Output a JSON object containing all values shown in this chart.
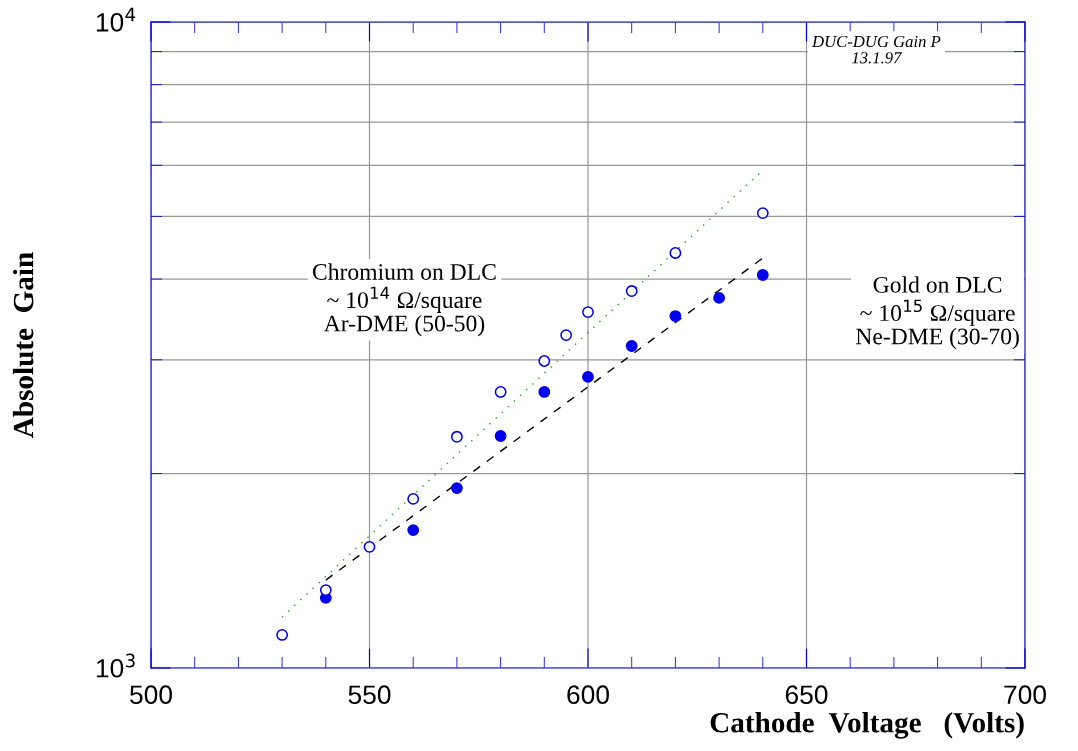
{
  "chart_data": {
    "type": "scatter",
    "xlabel": "Cathode  Voltage   (Volts)",
    "ylabel": "Absolute  Gain",
    "log": "y",
    "grid": true,
    "legend": false,
    "marker": "circle",
    "xlim": [
      500,
      700
    ],
    "xticks": [
      500,
      550,
      600,
      650,
      700
    ],
    "ylim": [
      1000,
      10000
    ],
    "yticks": [
      {
        "value": 1000,
        "label": "10$^{3}$"
      },
      {
        "value": 10000,
        "label": "10$^{4}$"
      }
    ],
    "series": [
      {
        "color": "#0000ee",
        "x": [
          530,
          540,
          550,
          560,
          570,
          580,
          590,
          595,
          600,
          610,
          620,
          640
        ],
        "values": [
          1125,
          1320,
          1540,
          1827,
          2280,
          2675,
          2987,
          3276,
          3556,
          3833,
          4390,
          5060
        ]
      },
      {
        "color": "#0000ee",
        "x": [
          540,
          560,
          570,
          580,
          590,
          600,
          610,
          620,
          630,
          640
        ],
        "values": [
          1284,
          1635,
          1899,
          2286,
          2675,
          2822,
          3151,
          3506,
          3740,
          4059
        ]
      },
      {
        "type": "line",
        "color": "#22a022",
        "line_style": "dotted",
        "marker": "none",
        "x": [
          530,
          640
        ],
        "values": [
          1199,
          5900
        ]
      },
      {
        "type": "line",
        "color": "#000000",
        "line_style": "dashed",
        "marker": "none",
        "x": [
          540,
          640
        ],
        "values": [
          1368,
          4310
        ]
      }
    ],
    "annotations": [
      "DUC-DUG Gain P\n13.1.97",
      "Chromium on DLC\n~ 10$^{14}$ Ω/square\nAr-DME (50-50)",
      "Gold on DLC\n~ 10$^{15}$ Ω/square\nNe-DME (30-70)"
    ]
  }
}
